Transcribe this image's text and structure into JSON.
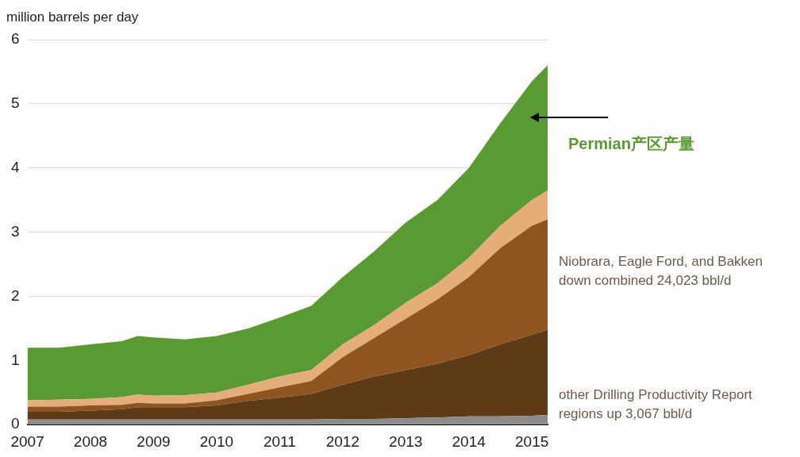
{
  "chart_data": {
    "type": "area",
    "stacked": true,
    "ylabel": "million barrels per day",
    "x": [
      2007,
      2007.5,
      2008,
      2008.5,
      2008.75,
      2009,
      2009.5,
      2010,
      2010.5,
      2011,
      2011.5,
      2012,
      2012.5,
      2013,
      2013.5,
      2014,
      2014.5,
      2015,
      2015.25
    ],
    "series": [
      {
        "color": "#8c8c8c",
        "values": [
          0.08,
          0.08,
          0.08,
          0.08,
          0.08,
          0.08,
          0.08,
          0.08,
          0.08,
          0.08,
          0.08,
          0.09,
          0.09,
          0.1,
          0.11,
          0.13,
          0.13,
          0.14,
          0.15
        ]
      },
      {
        "color": "#5e3a17",
        "values": [
          0.12,
          0.12,
          0.14,
          0.16,
          0.19,
          0.19,
          0.19,
          0.22,
          0.29,
          0.34,
          0.4,
          0.53,
          0.66,
          0.75,
          0.84,
          0.95,
          1.12,
          1.26,
          1.33
        ]
      },
      {
        "color": "#8f5520",
        "values": [
          0.08,
          0.08,
          0.08,
          0.07,
          0.07,
          0.06,
          0.06,
          0.08,
          0.11,
          0.16,
          0.2,
          0.43,
          0.6,
          0.8,
          1.0,
          1.22,
          1.5,
          1.7,
          1.72
        ]
      },
      {
        "color": "#e5ad7a",
        "values": [
          0.1,
          0.11,
          0.1,
          0.12,
          0.13,
          0.12,
          0.13,
          0.12,
          0.14,
          0.17,
          0.17,
          0.2,
          0.2,
          0.25,
          0.25,
          0.3,
          0.35,
          0.4,
          0.45
        ]
      },
      {
        "color": "#5a9a32",
        "values": [
          0.82,
          0.81,
          0.85,
          0.87,
          0.91,
          0.91,
          0.87,
          0.88,
          0.88,
          0.92,
          1.0,
          1.05,
          1.15,
          1.25,
          1.3,
          1.4,
          1.6,
          1.85,
          1.95
        ]
      }
    ],
    "xlim": [
      2007,
      2015.25
    ],
    "xticks": [
      2007,
      2008,
      2009,
      2010,
      2011,
      2012,
      2013,
      2014,
      2015
    ],
    "ylim": [
      0,
      6
    ],
    "yticks": [
      0,
      1,
      2,
      3,
      4,
      5,
      6
    ],
    "grid": "y",
    "annotations": [
      "Permian产区产量",
      "Niobrara, Eagle Ford, and Bakken down combined 24,023 bbl/d",
      "other Drilling Productivity Report regions up 3,067 bbl/d"
    ]
  }
}
